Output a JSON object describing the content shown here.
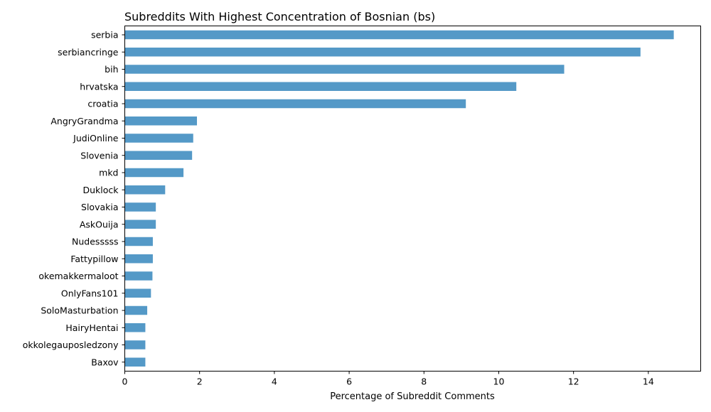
{
  "chart_data": {
    "type": "bar",
    "orientation": "horizontal",
    "title": "Subreddits With Highest Concentration of Bosnian (bs)",
    "xlabel": "Percentage of Subreddit Comments",
    "ylabel": "",
    "xlim": [
      0,
      15.4
    ],
    "xticks": [
      0,
      2,
      4,
      6,
      8,
      10,
      12,
      14
    ],
    "bar_color": "#5499c7",
    "grid": false,
    "legend": "none",
    "categories": [
      "serbia",
      "serbiancringe",
      "bih",
      "hrvatska",
      "croatia",
      "AngryGrandma",
      "JudiOnline",
      "Slovenia",
      "mkd",
      "Duklock",
      "Slovakia",
      "AskOuija",
      "Nudesssss",
      "Fattypillow",
      "okemakkermaloot",
      "OnlyFans101",
      "SoloMasturbation",
      "HairyHentai",
      "okkolegauposledzony",
      "Baxov"
    ],
    "values": [
      14.68,
      13.79,
      11.75,
      10.47,
      9.12,
      1.93,
      1.83,
      1.8,
      1.57,
      1.08,
      0.83,
      0.83,
      0.75,
      0.75,
      0.74,
      0.7,
      0.6,
      0.55,
      0.55,
      0.55
    ]
  }
}
